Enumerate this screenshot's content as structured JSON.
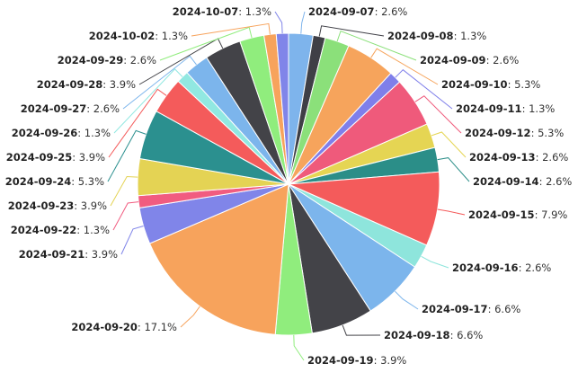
{
  "chart_data": {
    "type": "pie",
    "title": "",
    "slices": [
      {
        "label": "2024-09-07",
        "value": 2.6,
        "pct": "2.6%",
        "color": "#7eb4ec"
      },
      {
        "label": "2024-09-08",
        "value": 1.3,
        "pct": "1.3%",
        "color": "#3f3f46"
      },
      {
        "label": "2024-09-09",
        "value": 2.6,
        "pct": "2.6%",
        "color": "#8be07a"
      },
      {
        "label": "2024-09-10",
        "value": 5.3,
        "pct": "5.3%",
        "color": "#f6a45c"
      },
      {
        "label": "2024-09-11",
        "value": 1.3,
        "pct": "1.3%",
        "color": "#7f7fea"
      },
      {
        "label": "2024-09-12",
        "value": 5.3,
        "pct": "5.3%",
        "color": "#ef5a7b"
      },
      {
        "label": "2024-09-13",
        "value": 2.6,
        "pct": "2.6%",
        "color": "#e5d553"
      },
      {
        "label": "2024-09-14",
        "value": 2.6,
        "pct": "2.6%",
        "color": "#2b8e88"
      },
      {
        "label": "2024-09-15",
        "value": 7.9,
        "pct": "7.9%",
        "color": "#f45b5b"
      },
      {
        "label": "2024-09-16",
        "value": 2.6,
        "pct": "2.6%",
        "color": "#8ee5dc"
      },
      {
        "label": "2024-09-17",
        "value": 6.6,
        "pct": "6.6%",
        "color": "#7cb5ec"
      },
      {
        "label": "2024-09-18",
        "value": 6.6,
        "pct": "6.6%",
        "color": "#434348"
      },
      {
        "label": "2024-09-19",
        "value": 3.9,
        "pct": "3.9%",
        "color": "#90ed7d"
      },
      {
        "label": "2024-09-20",
        "value": 17.1,
        "pct": "17.1%",
        "color": "#f7a35c"
      },
      {
        "label": "2024-09-21",
        "value": 3.9,
        "pct": "3.9%",
        "color": "#8085e9"
      },
      {
        "label": "2024-09-22",
        "value": 1.3,
        "pct": "1.3%",
        "color": "#f15c80"
      },
      {
        "label": "2024-09-23",
        "value": 3.9,
        "pct": "3.9%",
        "color": "#e4d354"
      },
      {
        "label": "2024-09-24",
        "value": 5.3,
        "pct": "5.3%",
        "color": "#2b908f"
      },
      {
        "label": "2024-09-25",
        "value": 3.9,
        "pct": "3.9%",
        "color": "#f45b5b"
      },
      {
        "label": "2024-09-26",
        "value": 1.3,
        "pct": "1.3%",
        "color": "#91e8e1"
      },
      {
        "label": "2024-09-27",
        "value": 2.6,
        "pct": "2.6%",
        "color": "#7cb5ec"
      },
      {
        "label": "2024-09-28",
        "value": 3.9,
        "pct": "3.9%",
        "color": "#434348"
      },
      {
        "label": "2024-09-29",
        "value": 2.6,
        "pct": "2.6%",
        "color": "#90ed7d"
      },
      {
        "label": "2024-10-02",
        "value": 1.3,
        "pct": "1.3%",
        "color": "#f7a35c"
      },
      {
        "label": "2024-10-07",
        "value": 1.3,
        "pct": "1.3%",
        "color": "#8085e9"
      }
    ],
    "legend": "none",
    "data_labels": "outside with connector lines"
  }
}
